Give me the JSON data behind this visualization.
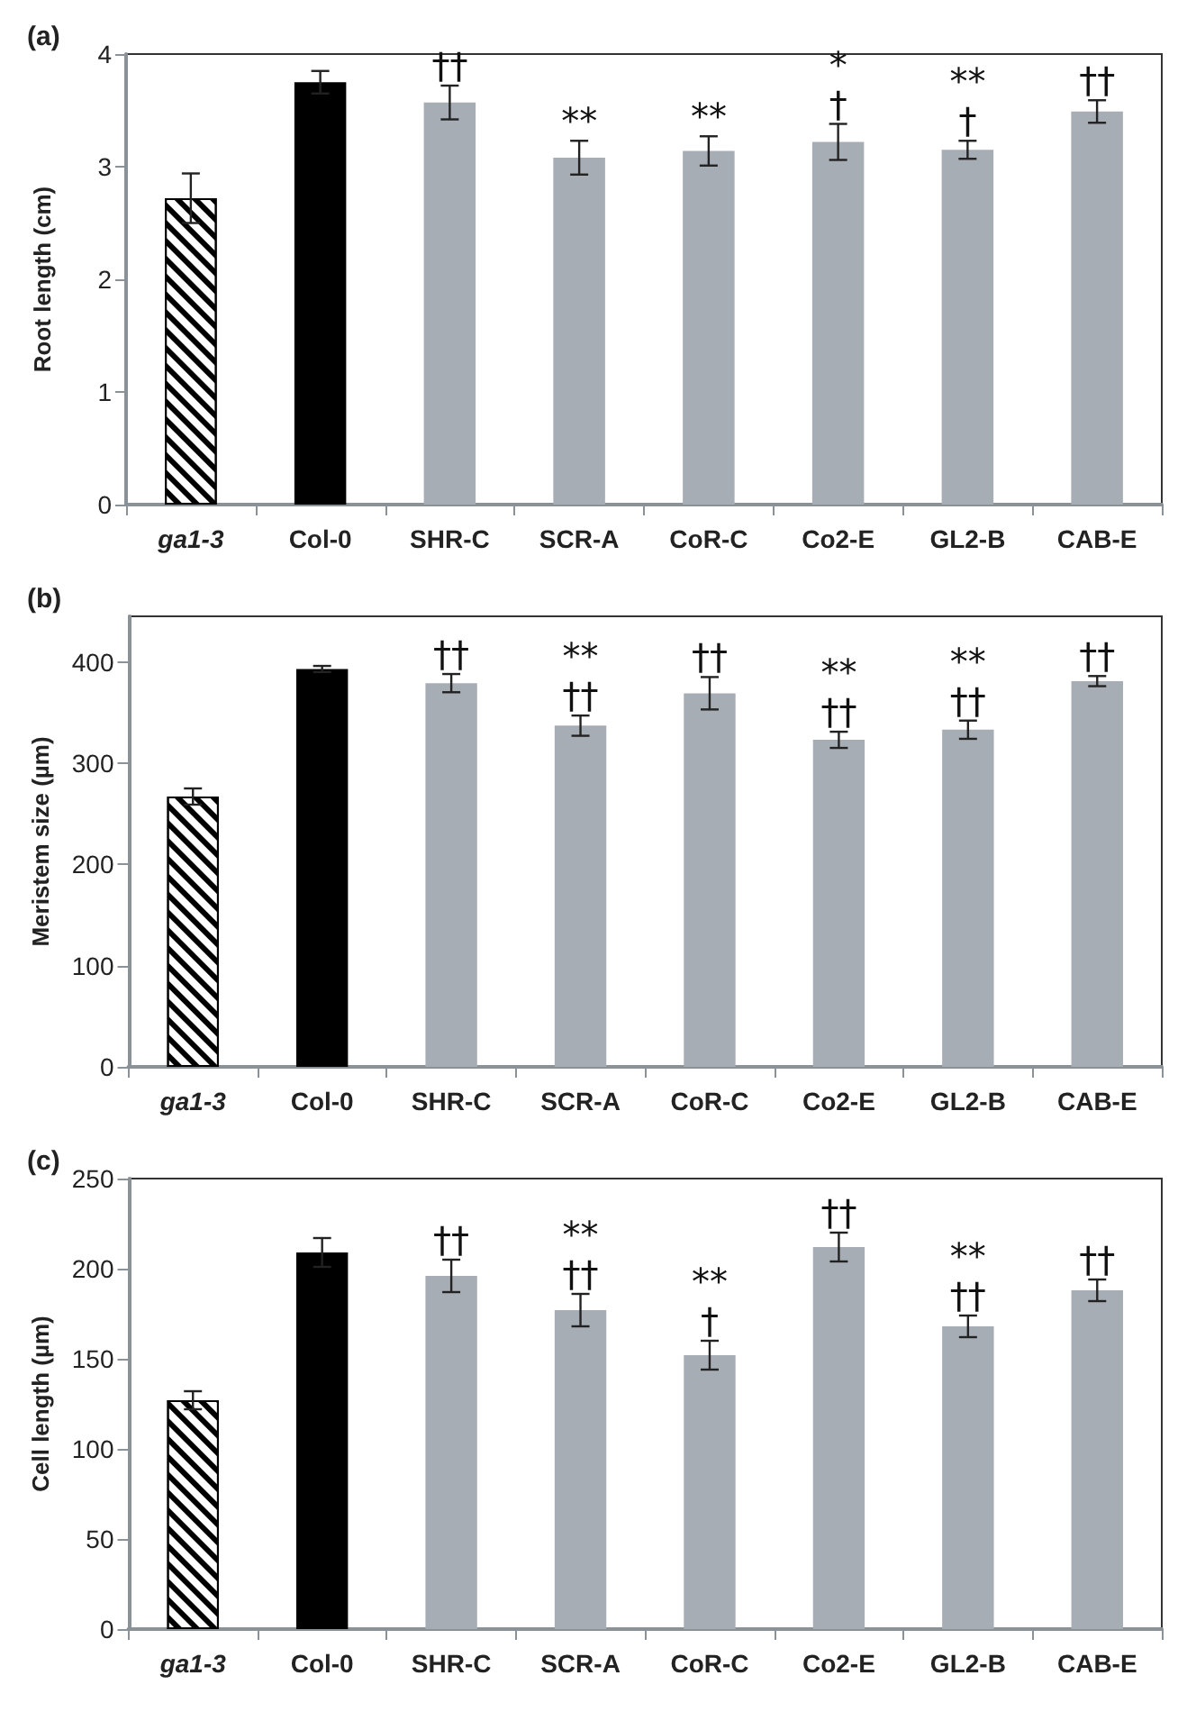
{
  "chart_data": [
    {
      "type": "bar",
      "title": "(a)",
      "ylabel": "Root length (cm)",
      "categories": [
        "ga1-3",
        "Col-0",
        "SHR-C",
        "SCR-A",
        "CoR-C",
        "Co2-E",
        "GL2-B",
        "CAB-E"
      ],
      "values": [
        2.72,
        3.75,
        3.57,
        3.08,
        3.14,
        3.22,
        3.15,
        3.49
      ],
      "errors": [
        0.22,
        0.1,
        0.15,
        0.15,
        0.13,
        0.16,
        0.08,
        0.1
      ],
      "colors": [
        "#ffffff",
        "#000000",
        "#a7adb5",
        "#a7adb5",
        "#a7adb5",
        "#a7adb5",
        "#a7adb5",
        "#a7adb5"
      ],
      "ylim": [
        0,
        4
      ],
      "yticks": [
        0,
        1,
        2,
        3,
        4
      ],
      "grid": false,
      "annotations": [
        {
          "text": "††",
          "x": "SHR-C",
          "y": 3.72
        },
        {
          "text": "**",
          "x": "SCR-A",
          "y": 3.23
        },
        {
          "text": "**",
          "x": "CoR-C",
          "y": 3.27
        },
        {
          "text": "*\n†",
          "x": "Co2-E",
          "y": 3.38
        },
        {
          "text": "**\n†",
          "x": "GL2-B",
          "y": 3.23
        },
        {
          "text": "††",
          "x": "CAB-E",
          "y": 3.59
        }
      ]
    },
    {
      "type": "bar",
      "title": "(b)",
      "ylabel": "Meristem size (µm)",
      "categories": [
        "ga1-3",
        "Col-0",
        "SHR-C",
        "SCR-A",
        "CoR-C",
        "Co2-E",
        "GL2-B",
        "CAB-E"
      ],
      "values": [
        267,
        393,
        379,
        337,
        369,
        323,
        333,
        381
      ],
      "errors": [
        8,
        3,
        9,
        10,
        16,
        8,
        9,
        5
      ],
      "colors": [
        "#ffffff",
        "#000000",
        "#a7adb5",
        "#a7adb5",
        "#a7adb5",
        "#a7adb5",
        "#a7adb5",
        "#a7adb5"
      ],
      "ylim": [
        0,
        445
      ],
      "yticks": [
        0,
        100,
        200,
        300,
        400
      ],
      "grid": false,
      "annotations": [
        {
          "text": "††",
          "x": "SHR-C",
          "y": 388
        },
        {
          "text": "**\n††",
          "x": "SCR-A",
          "y": 347
        },
        {
          "text": "††",
          "x": "CoR-C",
          "y": 385
        },
        {
          "text": "**\n††",
          "x": "Co2-E",
          "y": 331
        },
        {
          "text": "**\n††",
          "x": "GL2-B",
          "y": 342
        },
        {
          "text": "††",
          "x": "CAB-E",
          "y": 386
        }
      ]
    },
    {
      "type": "bar",
      "title": "(c)",
      "ylabel": "Cell length (µm)",
      "categories": [
        "ga1-3",
        "Col-0",
        "SHR-C",
        "SCR-A",
        "CoR-C",
        "Co2-E",
        "GL2-B",
        "CAB-E"
      ],
      "values": [
        127,
        209,
        196,
        177,
        152,
        212,
        168,
        188
      ],
      "errors": [
        5,
        8,
        9,
        9,
        8,
        8,
        6,
        6
      ],
      "colors": [
        "#ffffff",
        "#000000",
        "#a7adb5",
        "#a7adb5",
        "#a7adb5",
        "#a7adb5",
        "#a7adb5",
        "#a7adb5"
      ],
      "ylim": [
        0,
        250
      ],
      "yticks": [
        0,
        50,
        100,
        150,
        200,
        250
      ],
      "grid": false,
      "annotations": [
        {
          "text": "††",
          "x": "SHR-C",
          "y": 205
        },
        {
          "text": "**\n††",
          "x": "SCR-A",
          "y": 186
        },
        {
          "text": "**\n†",
          "x": "CoR-C",
          "y": 160
        },
        {
          "text": "††",
          "x": "Co2-E",
          "y": 220
        },
        {
          "text": "**\n††",
          "x": "GL2-B",
          "y": 174
        },
        {
          "text": "††",
          "x": "CAB-E",
          "y": 194
        }
      ]
    }
  ]
}
